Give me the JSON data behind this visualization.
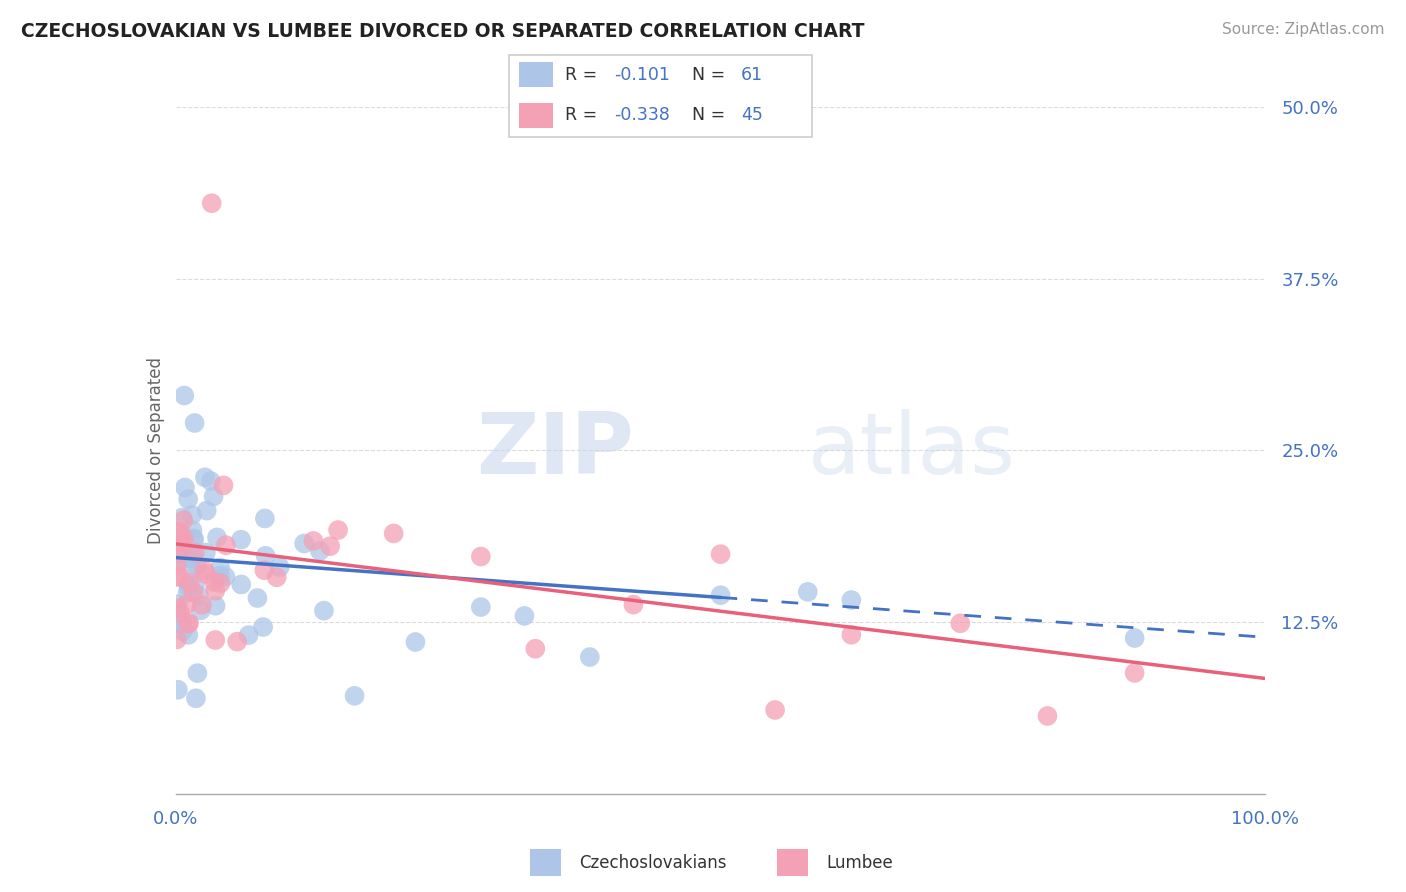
{
  "title": "CZECHOSLOVAKIAN VS LUMBEE DIVORCED OR SEPARATED CORRELATION CHART",
  "source": "Source: ZipAtlas.com",
  "ylabel": "Divorced or Separated",
  "xlim": [
    0,
    1.0
  ],
  "ylim": [
    0,
    0.5
  ],
  "blue_color": "#adc6e8",
  "pink_color": "#f4a0b5",
  "blue_line_color": "#4472c4",
  "pink_line_color": "#e8607a",
  "grid_color": "#cccccc",
  "label_color": "#4472c4",
  "background_color": "#ffffff",
  "watermark_zip": "ZIP",
  "watermark_atlas": "atlas",
  "r_blue": -0.101,
  "n_blue": 61,
  "r_pink": -0.338,
  "n_pink": 45
}
